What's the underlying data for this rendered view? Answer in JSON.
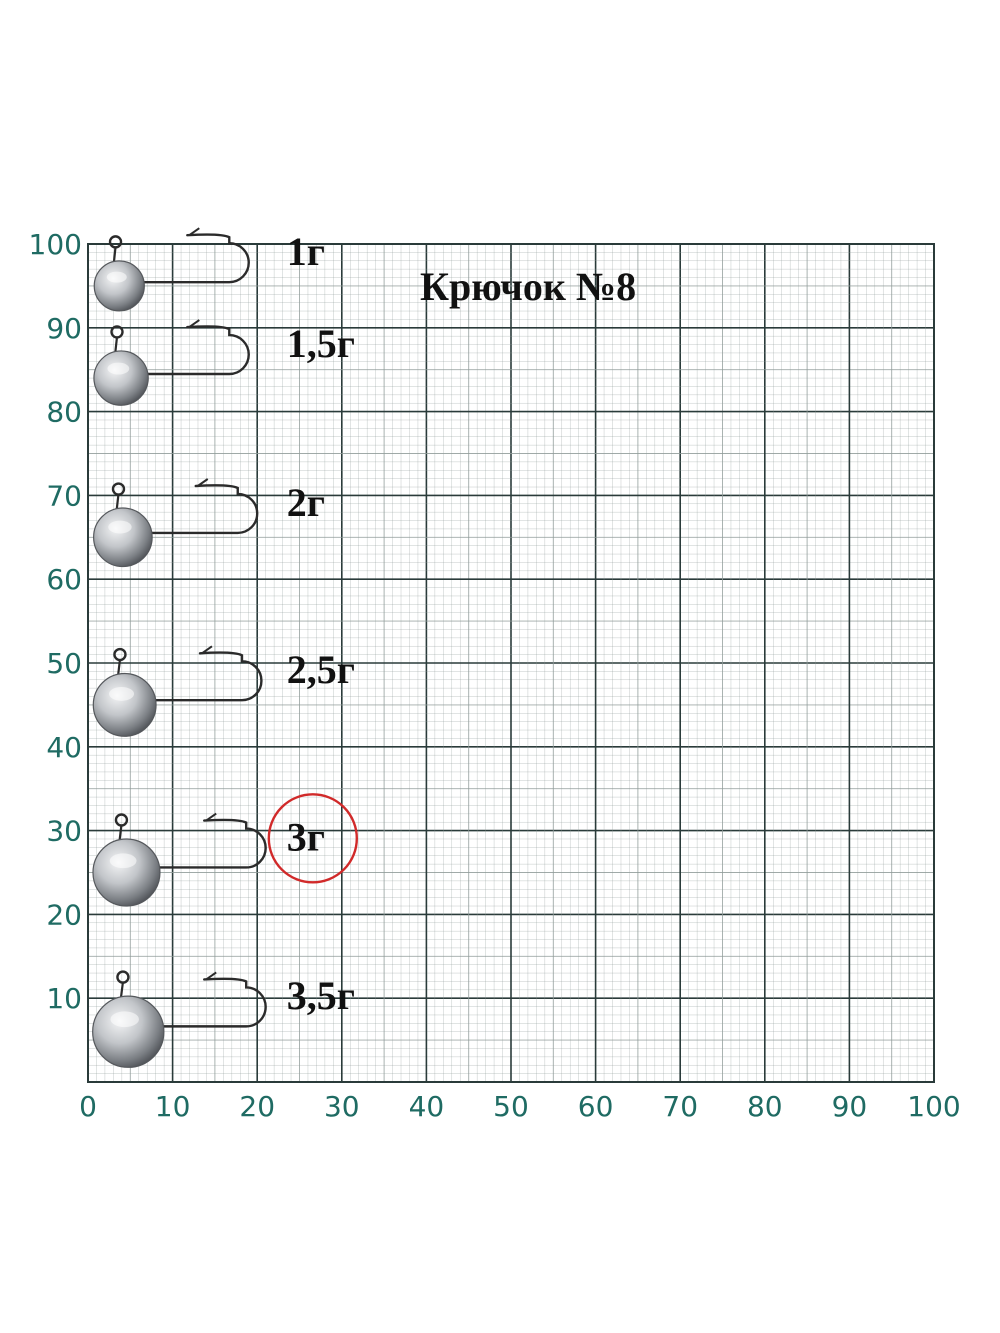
{
  "title": "Крючок №8",
  "axis": {
    "x_ticks": [
      "0",
      "10",
      "20",
      "30",
      "40",
      "50",
      "60",
      "70",
      "80",
      "90",
      "100"
    ],
    "y_ticks": [
      "100",
      "90",
      "80",
      "70",
      "60",
      "50",
      "40",
      "30",
      "20",
      "10"
    ],
    "range": [
      0,
      100
    ]
  },
  "jigs": [
    {
      "label": "1г",
      "weight_g": 1,
      "y_center": 95,
      "hook_length": 19,
      "head_size": 4.5
    },
    {
      "label": "1,5г",
      "weight_g": 1.5,
      "y_center": 84,
      "hook_length": 19,
      "head_size": 5
    },
    {
      "label": "2г",
      "weight_g": 2,
      "y_center": 65,
      "hook_length": 20,
      "head_size": 5.5
    },
    {
      "label": "2,5г",
      "weight_g": 2.5,
      "y_center": 45,
      "hook_length": 20.5,
      "head_size": 6
    },
    {
      "label": "3г",
      "weight_g": 3,
      "y_center": 25,
      "hook_length": 21,
      "head_size": 6.5,
      "highlighted": true
    },
    {
      "label": "3,5г",
      "weight_g": 3.5,
      "y_center": 6,
      "hook_length": 21,
      "head_size": 7
    }
  ],
  "colors": {
    "grid_major": "#2a3b3a",
    "grid_minor": "#8f9b99",
    "axis_text": "#1f6b63",
    "highlight_circle": "#d12a2a",
    "hook": "#2b2b2b",
    "head_light": "#e4e6e8",
    "head_dark": "#6b6e72"
  }
}
